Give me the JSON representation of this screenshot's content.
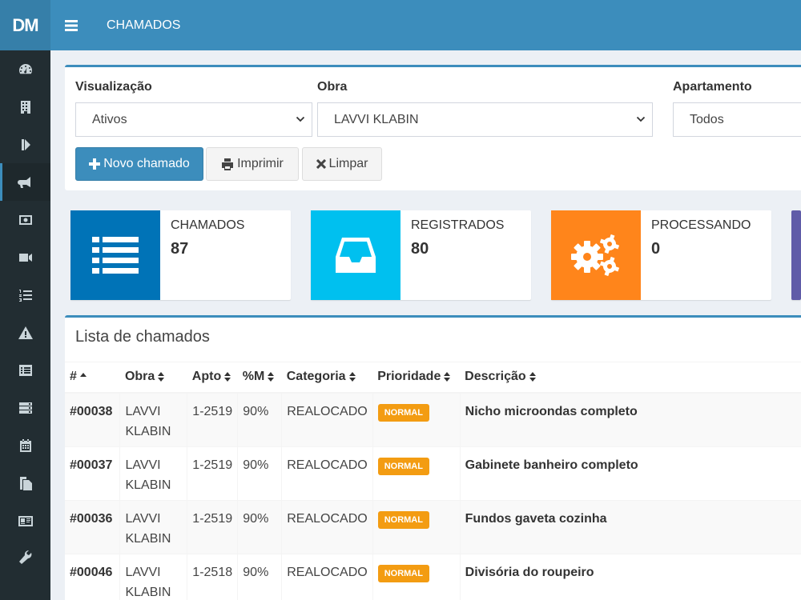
{
  "app": {
    "logo": "DM",
    "title": "CHAMADOS"
  },
  "sidebar": {
    "icons": [
      "dashboard-icon",
      "building-icon",
      "step-forward-icon",
      "bullhorn-icon",
      "money-icon",
      "video-camera-icon",
      "list-ol-icon",
      "warning-icon",
      "list-alt-icon",
      "server-icon",
      "calendar-icon",
      "files-icon",
      "id-card-icon",
      "wrench-icon"
    ],
    "active_index": 3
  },
  "filters": {
    "visualizacao": {
      "label": "Visualização",
      "value": "Ativos"
    },
    "obra": {
      "label": "Obra",
      "value": "LAVVI KLABIN"
    },
    "apartamento": {
      "label": "Apartamento",
      "value": "Todos"
    }
  },
  "buttons": {
    "novo": "Novo chamado",
    "imprimir": "Imprimir",
    "limpar": "Limpar"
  },
  "stats": [
    {
      "label": "CHAMADOS",
      "value": "87",
      "color": "#0073b7"
    },
    {
      "label": "REGISTRADOS",
      "value": "80",
      "color": "#00c0ef"
    },
    {
      "label": "PROCESSANDO",
      "value": "0",
      "color": "#ff851b"
    }
  ],
  "table": {
    "title": "Lista de chamados",
    "headers": [
      "#",
      "Obra",
      "Apto",
      "%M",
      "Categoria",
      "Prioridade",
      "Descrição"
    ],
    "rows": [
      {
        "id": "#00038",
        "obra_1": "LAVVI",
        "obra_2": "KLABIN",
        "apto": "1-2519",
        "pm": "90%",
        "categoria": "REALOCADO",
        "prioridade": "NORMAL",
        "descricao": "Nicho microondas completo"
      },
      {
        "id": "#00037",
        "obra_1": "LAVVI",
        "obra_2": "KLABIN",
        "apto": "1-2519",
        "pm": "90%",
        "categoria": "REALOCADO",
        "prioridade": "NORMAL",
        "descricao": "Gabinete banheiro completo"
      },
      {
        "id": "#00036",
        "obra_1": "LAVVI",
        "obra_2": "KLABIN",
        "apto": "1-2519",
        "pm": "90%",
        "categoria": "REALOCADO",
        "prioridade": "NORMAL",
        "descricao": "Fundos gaveta cozinha"
      },
      {
        "id": "#00046",
        "obra_1": "LAVVI",
        "obra_2": "KLABIN",
        "apto": "1-2518",
        "pm": "90%",
        "categoria": "REALOCADO",
        "prioridade": "NORMAL",
        "descricao": "Divisória do roupeiro"
      }
    ]
  },
  "colors": {
    "header": "#3c8dbc",
    "sidebar": "#222d32",
    "badge": "#f39c12",
    "accent_purple": "#605ca8"
  }
}
